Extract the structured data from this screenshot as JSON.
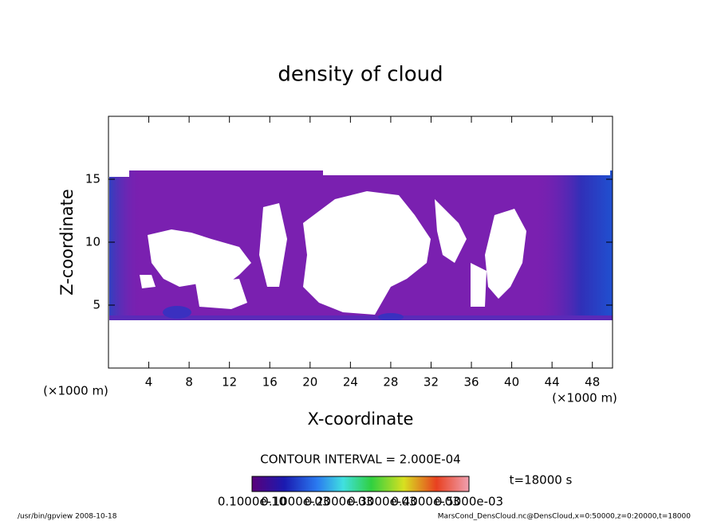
{
  "chart_data": {
    "type": "contour",
    "title": "density of cloud",
    "x_label": "X-coordinate",
    "y_label": "Z-coordinate",
    "x_unit": "(×1000 m)",
    "y_unit": "(×1000 m)",
    "xlim": [
      0,
      50
    ],
    "ylim": [
      0,
      20
    ],
    "xticks": [
      4,
      8,
      12,
      16,
      20,
      24,
      28,
      32,
      36,
      40,
      44,
      48
    ],
    "yticks": [
      5,
      10,
      15
    ],
    "contour_interval": "CONTOUR INTERVAL = 2.000E-04",
    "time_label": "t=18000 s",
    "colorbar_ticks": [
      {
        "value": 1e-11,
        "label": "0.1000e-10"
      },
      {
        "value": 0.0001,
        "label": "0.1000e-03"
      },
      {
        "value": 0.0002,
        "label": "0.2000e-03"
      },
      {
        "value": 0.0003,
        "label": "0.3000e-03"
      },
      {
        "value": 0.0004,
        "label": "0.4000e-03"
      },
      {
        "value": 0.0005,
        "label": "0.5000e-03"
      }
    ],
    "footer_left": "/usr/bin/gpview  2008-10-18",
    "footer_right": "MarsCond_DensCloud.nc@DensCloud,x=0:50000,z=0:20000,t=18000"
  }
}
